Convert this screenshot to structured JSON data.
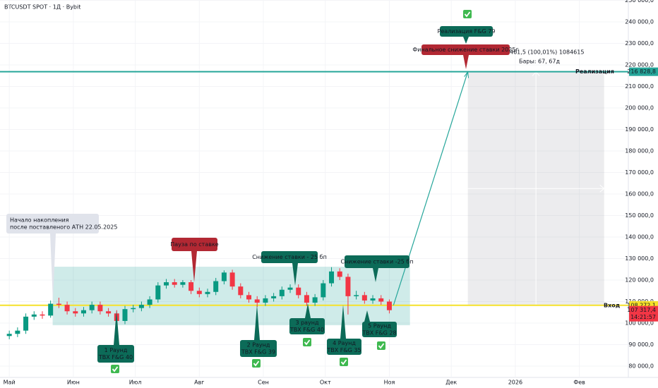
{
  "chart_data": {
    "type": "candlestick",
    "title": "BTCUSDT SPOT · 1Д · Bybit",
    "x": [
      0,
      4,
      8,
      12,
      16,
      20,
      24,
      28,
      32,
      36,
      40,
      44,
      48,
      52,
      56,
      60,
      64,
      68,
      72,
      76,
      80,
      84,
      88,
      92,
      96,
      100,
      104,
      108,
      112,
      116,
      120,
      124,
      128,
      132,
      136,
      140,
      144,
      148,
      152,
      156,
      160,
      164,
      168,
      172,
      176,
      180,
      184
    ],
    "open": [
      94000,
      95000,
      96500,
      103000,
      104000,
      103500,
      109000,
      108500,
      105500,
      104500,
      106000,
      108500,
      105500,
      104500,
      101000,
      106500,
      107000,
      108500,
      111000,
      117500,
      119000,
      117800,
      119000,
      115000,
      113500,
      114500,
      119500,
      123500,
      117000,
      113000,
      111000,
      109500,
      111500,
      112500,
      115500,
      116500,
      113000,
      109500,
      112000,
      118500,
      124000,
      121500,
      112500,
      113000,
      110500,
      111500,
      110000
    ],
    "high": [
      96500,
      98000,
      104500,
      105500,
      105500,
      110500,
      111800,
      110000,
      107000,
      107500,
      110000,
      110000,
      107000,
      106000,
      108000,
      108500,
      110000,
      112500,
      119000,
      120500,
      120500,
      120000,
      120000,
      116500,
      116000,
      121000,
      124500,
      124800,
      118500,
      114500,
      112500,
      113000,
      114000,
      117000,
      118000,
      118000,
      114500,
      113500,
      120000,
      126000,
      125500,
      123000,
      115000,
      114500,
      113000,
      113000,
      111000
    ],
    "low": [
      92500,
      93500,
      95000,
      101500,
      102000,
      102500,
      107000,
      104000,
      103000,
      103000,
      104500,
      104000,
      103000,
      98500,
      99500,
      105000,
      105500,
      107000,
      109500,
      116000,
      116500,
      116500,
      113500,
      112000,
      112000,
      113000,
      118000,
      115500,
      111500,
      109500,
      107500,
      108000,
      110000,
      111000,
      114000,
      111500,
      108000,
      108000,
      110500,
      117000,
      120000,
      104000,
      111000,
      109000,
      109000,
      108500,
      104500
    ],
    "close": [
      95000,
      96500,
      103000,
      104000,
      103500,
      109000,
      108500,
      105500,
      104500,
      106000,
      108500,
      105500,
      104500,
      101000,
      106500,
      107000,
      108500,
      111000,
      117500,
      119000,
      117800,
      119000,
      115000,
      113500,
      114500,
      119500,
      123500,
      117000,
      113000,
      111000,
      109500,
      111500,
      112500,
      115500,
      116500,
      113000,
      109500,
      112000,
      118500,
      124000,
      121500,
      112500,
      113000,
      110500,
      111500,
      110000,
      106000
    ],
    "up_color": "#089981",
    "down_color": "#f23645",
    "xlim": [
      -4.5,
      300
    ],
    "xticks": [
      {
        "value": 0,
        "label": "Май"
      },
      {
        "value": 31,
        "label": "Июн"
      },
      {
        "value": 61,
        "label": "Июл"
      },
      {
        "value": 92,
        "label": "Авг"
      },
      {
        "value": 123,
        "label": "Сен"
      },
      {
        "value": 153,
        "label": "Окт"
      },
      {
        "value": 184,
        "label": "Ноя"
      },
      {
        "value": 214,
        "label": "Дек"
      },
      {
        "value": 245,
        "label": "2026"
      },
      {
        "value": 276,
        "label": "Фев"
      }
    ],
    "ylim": [
      80000,
      250000
    ],
    "yticks": [
      {
        "value": 80000,
        "label": "80 000,0"
      },
      {
        "value": 90000,
        "label": "90 000,0"
      },
      {
        "value": 100000,
        "label": "100 000,0"
      },
      {
        "value": 110000,
        "label": "110 000,0"
      },
      {
        "value": 120000,
        "label": "120 000,0"
      },
      {
        "value": 130000,
        "label": "130 000,0"
      },
      {
        "value": 140000,
        "label": "140 000,0"
      },
      {
        "value": 150000,
        "label": "150 000,0"
      },
      {
        "value": 160000,
        "label": "160 000,0"
      },
      {
        "value": 170000,
        "label": "170 000,0"
      },
      {
        "value": 180000,
        "label": "180 000,0"
      },
      {
        "value": 190000,
        "label": "190 000,0"
      },
      {
        "value": 200000,
        "label": "200 000,0"
      },
      {
        "value": 210000,
        "label": "210 000,0"
      },
      {
        "value": 220000,
        "label": "220 000,0"
      },
      {
        "value": 230000,
        "label": "230 000,0"
      },
      {
        "value": 240000,
        "label": "240 000,0"
      },
      {
        "value": 250000,
        "label": "250 000,0"
      }
    ],
    "levels": [
      {
        "name": "Реализация",
        "value": 216828.8,
        "label": "216 828,8",
        "color": "#26a69a"
      },
      {
        "name": "Вход",
        "value": 108272.1,
        "label": "108 272,1",
        "color": "#f5e12a"
      }
    ],
    "last_price": {
      "value": 107317.4,
      "label": "107 317,4",
      "countdown": "14:21:57",
      "color": "#f23645"
    },
    "range_box": {
      "x": [
        21,
        194
      ],
      "y": [
        99000,
        126200
      ],
      "color": "#26a69a"
    },
    "projection": {
      "x": [
        186,
        222,
        288
      ],
      "measure": "461,5 (100,01%) 1084615",
      "bars": "Бары: 67, 67д"
    },
    "annotations": [
      {
        "lines": [
          "Начало накопления",
          "после поставленого АТН 22.05.2025"
        ],
        "color": "#e0e3eb"
      },
      {
        "lines": [
          "Пауза по ставке"
        ],
        "color": "#b22833"
      },
      {
        "lines": [
          "Снижение ставки - 25 бп"
        ],
        "color": "#0c6b58"
      },
      {
        "lines": [
          "Снижение ставки -25 бп"
        ],
        "color": "#0c6b58"
      },
      {
        "lines": [
          "1 Раунд",
          "TBX F&G 40"
        ],
        "color": "#0c6b58"
      },
      {
        "lines": [
          "2 Раунд",
          "TBX F&G 39"
        ],
        "color": "#0c6b58"
      },
      {
        "lines": [
          "3 раунд",
          "TBX F&G 40"
        ],
        "color": "#0c6b58"
      },
      {
        "lines": [
          "4 Раунд",
          "TBX F&G 35"
        ],
        "color": "#0c6b58"
      },
      {
        "lines": [
          "5 Раунд",
          "TBX F&G 28"
        ],
        "color": "#0c6b58"
      },
      {
        "lines": [
          "Реализация F&G 79"
        ],
        "color": "#0c6b58"
      },
      {
        "lines": [
          "Финальное снижение ставки 2025г"
        ],
        "color": "#b22833"
      }
    ]
  }
}
